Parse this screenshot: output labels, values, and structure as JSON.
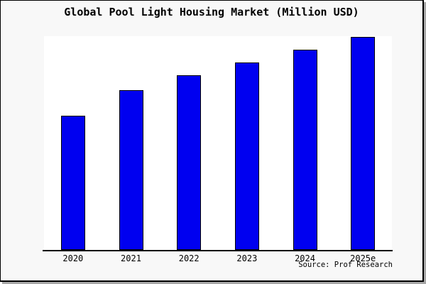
{
  "title": "Global Pool Light Housing Market (Million USD)",
  "source": "Source: Prof Research",
  "colors": {
    "page_background": "#f8f8f8",
    "plot_background": "#ffffff",
    "bar_fill": "#0000f0",
    "bar_border": "#000000",
    "axis": "#000000",
    "frame_border": "#000000",
    "frame_shadow": "#a6a6a6"
  },
  "chart_data": {
    "type": "bar",
    "title": "Global Pool Light Housing Market (Million USD)",
    "categories": [
      "2020",
      "2021",
      "2022",
      "2023",
      "2024",
      "2025e"
    ],
    "values": [
      63,
      75,
      82,
      88,
      94,
      100
    ],
    "values_unit": "relative index (no y-axis labels shown; heights estimated, 2025e = 100)",
    "xlabel": "",
    "ylabel": "",
    "ylim": [
      0,
      100
    ],
    "grid": false,
    "legend": false,
    "y_axis_visible": false,
    "bar_color": "#0000f0",
    "annotation": "Source: Prof Research"
  }
}
